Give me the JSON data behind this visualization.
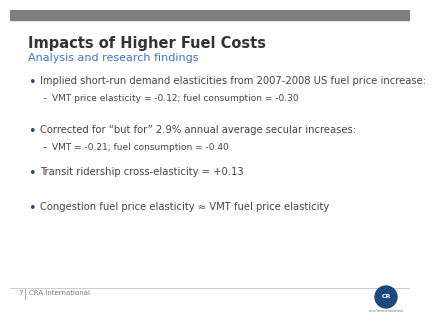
{
  "title": "Impacts of Higher Fuel Costs",
  "subtitle": "Analysis and research findings",
  "title_color": "#333333",
  "subtitle_color": "#4472c4",
  "background_color": "#ffffff",
  "top_bar_color": "#808080",
  "bullet_color": "#1f497d",
  "dash_color": "#555555",
  "text_color": "#444444",
  "footer_line_color": "#cccccc",
  "footer_text_color": "#777777",
  "bullet_items": [
    {
      "text": "Implied short-run demand elasticities from 2007-2008 US fuel price increase:",
      "sub": [
        "VMT price elasticity = -0.12; fuel consumption = -0.30"
      ]
    },
    {
      "text": "Corrected for “but for” 2.9% annual average secular increases:",
      "sub": [
        "VMT = -0.21; fuel consumption = -0.40"
      ]
    },
    {
      "text": "Transit ridership cross-elasticity = +0.13",
      "sub": []
    },
    {
      "text": "Congestion fuel price elasticity ≈ VMT fuel price elasticity",
      "sub": []
    }
  ],
  "footer_page": "7",
  "footer_text": "CRA International",
  "title_fontsize": 10.5,
  "subtitle_fontsize": 8.0,
  "bullet_fontsize": 7.2,
  "sub_fontsize": 6.5,
  "footer_fontsize": 5.0,
  "logo_color": "#1f497d"
}
